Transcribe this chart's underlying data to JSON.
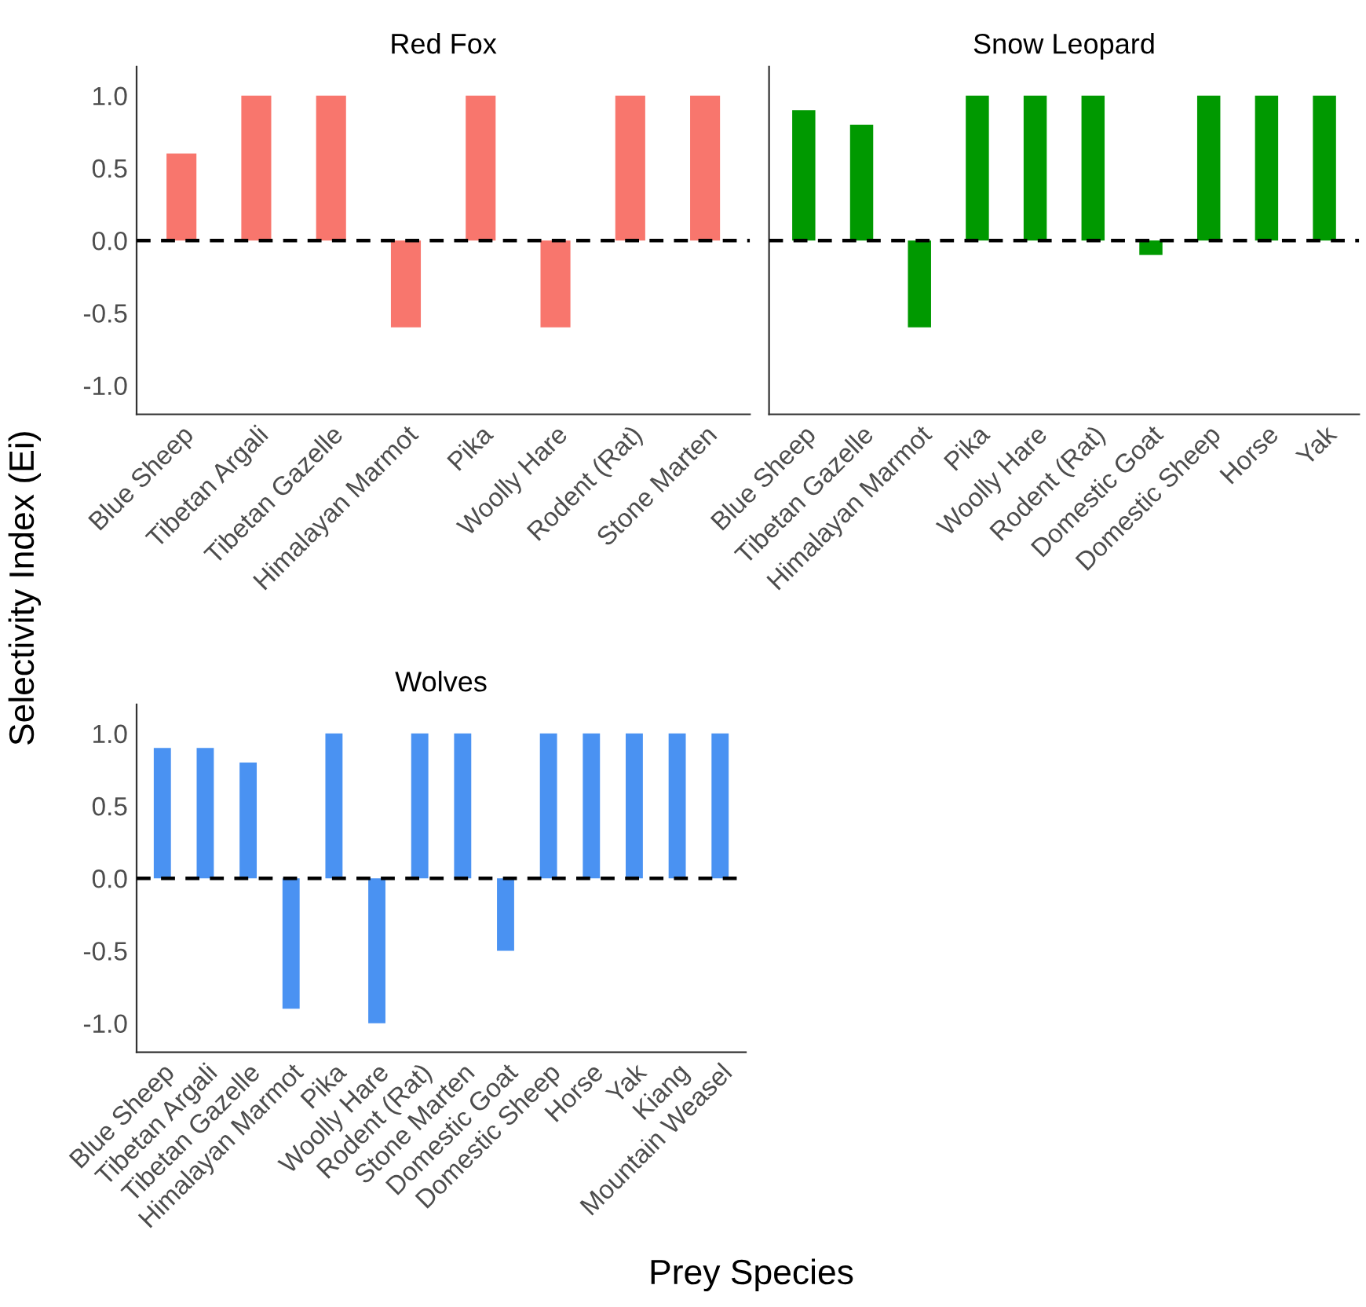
{
  "chart_data": [
    {
      "type": "bar",
      "title": "Red Fox",
      "ylabel": "Selectivity Index (Ei)",
      "categories": [
        "Blue Sheep",
        "Tibetan Argali",
        "Tibetan Gazelle",
        "Himalayan Marmot",
        "Pika",
        "Woolly Hare",
        "Rodent (Rat)",
        "Stone Marten"
      ],
      "values": [
        0.6,
        1.0,
        1.0,
        -0.6,
        1.0,
        -0.6,
        1.0,
        1.0
      ],
      "color": "#f8766d",
      "ylim": [
        -1.2,
        1.2
      ],
      "yticks": [
        {
          "value": -1.0,
          "label": "-1.0"
        },
        {
          "value": -0.5,
          "label": "-0.5"
        },
        {
          "value": 0.0,
          "label": "0.0"
        },
        {
          "value": 0.5,
          "label": "0.5"
        },
        {
          "value": 1.0,
          "label": "1.0"
        }
      ],
      "ref_lines": [
        {
          "axis": "y",
          "value": 0,
          "color": "#000000",
          "line_style": "dashed"
        }
      ],
      "grid": false
    },
    {
      "type": "bar",
      "title": "Snow Leopard",
      "categories": [
        "Blue Sheep",
        "Tibetan Gazelle",
        "Himalayan Marmot",
        "Pika",
        "Woolly Hare",
        "Rodent (Rat)",
        "Domestic Goat",
        "Domestic Sheep",
        "Horse",
        "Yak"
      ],
      "values": [
        0.9,
        0.8,
        -0.6,
        1.0,
        1.0,
        1.0,
        -0.1,
        1.0,
        1.0,
        1.0
      ],
      "color": "#009900",
      "ylim": [
        -1.2,
        1.2
      ],
      "tick_labels": "x",
      "ref_lines": [
        {
          "axis": "y",
          "value": 0,
          "color": "#000000",
          "line_style": "dashed"
        }
      ],
      "grid": false
    },
    {
      "type": "bar",
      "title": "Wolves",
      "xlabel": "Prey Species",
      "categories": [
        "Blue Sheep",
        "Tibetan Argali",
        "Tibetan Gazelle",
        "Himalayan Marmot",
        "Pika",
        "Woolly Hare",
        "Rodent (Rat)",
        "Stone Marten",
        "Domestic Goat",
        "Domestic Sheep",
        "Horse",
        "Yak",
        "Kiang",
        "Mountain Weasel"
      ],
      "values": [
        0.9,
        0.9,
        0.8,
        -0.9,
        1.0,
        -1.0,
        1.0,
        1.0,
        -0.5,
        1.0,
        1.0,
        1.0,
        1.0,
        1.0
      ],
      "color": "#4a92f2",
      "ylim": [
        -1.2,
        1.2
      ],
      "yticks": [
        {
          "value": -1.0,
          "label": "-1.0"
        },
        {
          "value": -0.5,
          "label": "-0.5"
        },
        {
          "value": 0.0,
          "label": "0.0"
        },
        {
          "value": 0.5,
          "label": "0.5"
        },
        {
          "value": 1.0,
          "label": "1.0"
        }
      ],
      "ref_lines": [
        {
          "axis": "y",
          "value": 0,
          "color": "#000000",
          "line_style": "dashed"
        }
      ],
      "grid": false
    }
  ]
}
